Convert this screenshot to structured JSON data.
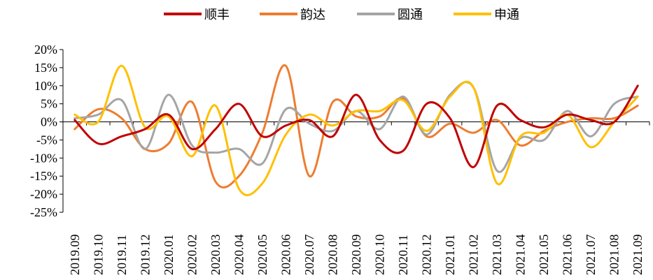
{
  "chart_data": {
    "type": "line",
    "title": "",
    "xlabel": "",
    "ylabel": "",
    "x": [
      "2019.09",
      "2019.10",
      "2019.11",
      "2019.12",
      "2020.01",
      "2020.02",
      "2020.03",
      "2020.04",
      "2020.05",
      "2020.06",
      "2020.07",
      "2020.08",
      "2020.09",
      "2020.10",
      "2020.11",
      "2020.12",
      "2021.01",
      "2021.02",
      "2021.03",
      "2021.04",
      "2021.05",
      "2021.06",
      "2021.07",
      "2021.08",
      "2021.09"
    ],
    "ylim": [
      -25,
      20
    ],
    "yticks": [
      20,
      15,
      10,
      5,
      0,
      -5,
      -10,
      -15,
      -20,
      -25
    ],
    "ytick_labels": [
      "20%",
      "15%",
      "10%",
      "5%",
      "0%",
      "-5%",
      "-10%",
      "-15%",
      "-20%",
      "-25%"
    ],
    "legend_position": "top",
    "grid": false,
    "series": [
      {
        "name": "顺丰",
        "color": "#C00000",
        "values": [
          0.5,
          -6,
          -4,
          -2,
          2,
          -7.5,
          -2,
          5,
          -4,
          -1,
          0.5,
          -4,
          7.5,
          -5,
          -8,
          5,
          1,
          -12.5,
          4.5,
          0.5,
          -1.5,
          2,
          0.5,
          0,
          10
        ]
      },
      {
        "name": "韵达",
        "color": "#ED7D31",
        "values": [
          -2,
          3.5,
          1,
          -7.5,
          -6,
          5.5,
          -16.5,
          -15,
          -3,
          15.5,
          -15,
          5.5,
          1.5,
          1.5,
          6.5,
          -4,
          -0.5,
          -3,
          0.5,
          -6.5,
          -2.5,
          0,
          1,
          1,
          4.5
        ]
      },
      {
        "name": "圆通",
        "color": "#A5A5A5",
        "values": [
          1,
          2,
          6,
          -7.5,
          7.5,
          -6.5,
          -8.5,
          -7.5,
          -11.5,
          3.5,
          -0.5,
          -2.5,
          3,
          -2,
          7,
          -3.5,
          7.5,
          9.5,
          -13.5,
          -4.5,
          -5,
          3,
          -4,
          5,
          7
        ]
      },
      {
        "name": "申通",
        "color": "#FFC000",
        "values": [
          2,
          0,
          15.5,
          -1.5,
          1.5,
          -9.5,
          4.5,
          -18.5,
          -17,
          -3.5,
          2,
          -1,
          3,
          3,
          6,
          -2.5,
          7,
          9.5,
          -17,
          -4,
          -3,
          2,
          -7,
          0,
          7
        ]
      }
    ]
  }
}
